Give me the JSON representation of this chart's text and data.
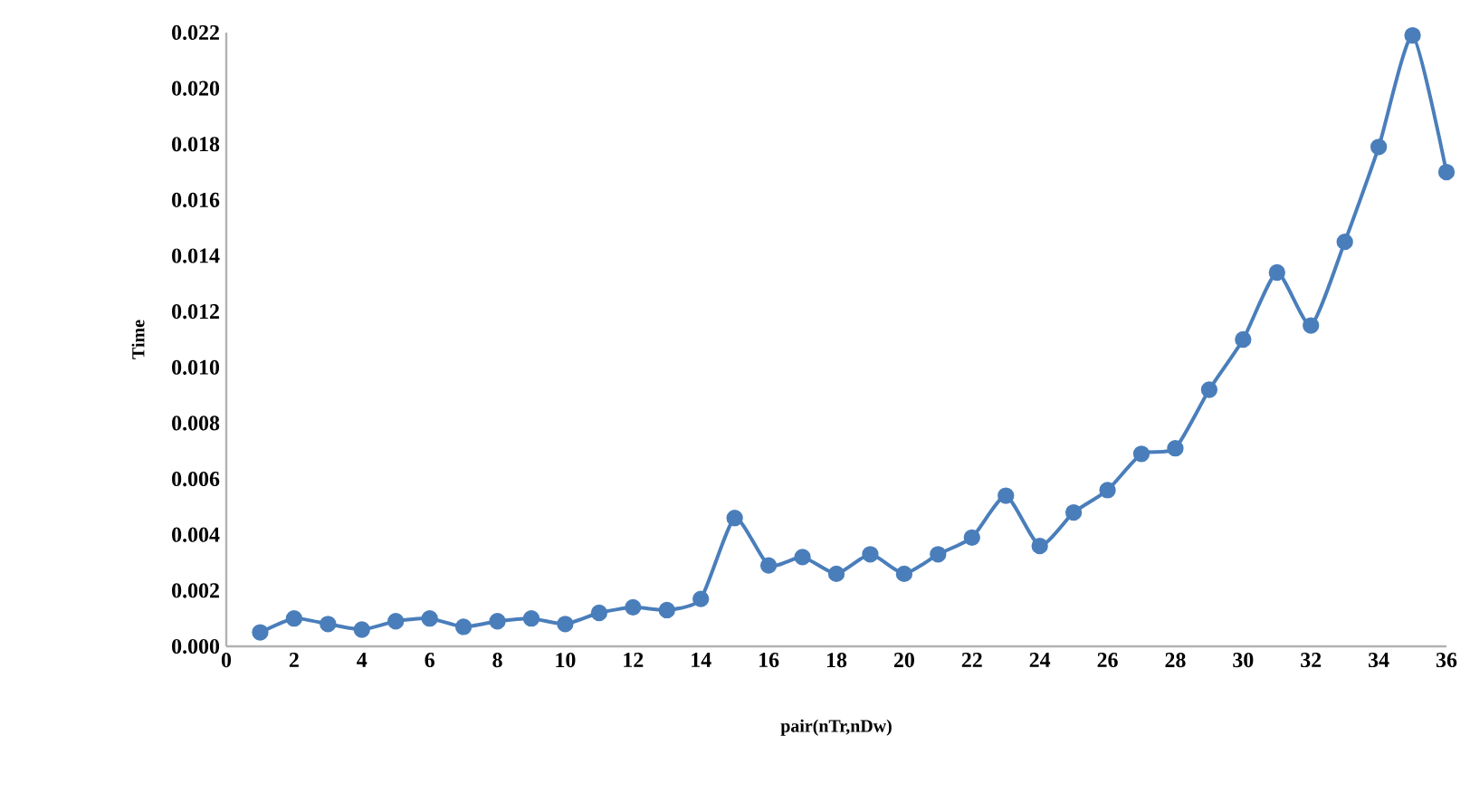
{
  "chart_data": {
    "type": "line",
    "xlabel": "pair(nTr,nDw)",
    "ylabel": "Time",
    "x": [
      1,
      2,
      3,
      4,
      5,
      6,
      7,
      8,
      9,
      10,
      11,
      12,
      13,
      14,
      15,
      16,
      17,
      18,
      19,
      20,
      21,
      22,
      23,
      24,
      25,
      26,
      27,
      28,
      29,
      30,
      31,
      32,
      33,
      34,
      35,
      36
    ],
    "series": [
      {
        "color": "#4a7ebb",
        "values": [
          0.0005,
          0.001,
          0.0008,
          0.0006,
          0.0009,
          0.001,
          0.0007,
          0.0009,
          0.001,
          0.0008,
          0.0012,
          0.0014,
          0.0013,
          0.0017,
          0.0046,
          0.0029,
          0.0032,
          0.0026,
          0.0033,
          0.0026,
          0.0033,
          0.0039,
          0.0054,
          0.0036,
          0.0048,
          0.0056,
          0.0069,
          0.0071,
          0.0092,
          0.011,
          0.0134,
          0.0115,
          0.0145,
          0.0179,
          0.0219,
          0.017
        ]
      }
    ],
    "xlim": [
      0,
      36
    ],
    "xticks": [
      0,
      2,
      4,
      6,
      8,
      10,
      12,
      14,
      16,
      18,
      20,
      22,
      24,
      26,
      28,
      30,
      32,
      34,
      36
    ],
    "ylim": [
      0,
      0.022
    ],
    "yticks": [
      {
        "value": 0,
        "label": "0.000"
      },
      {
        "value": 0.002,
        "label": "0.002"
      },
      {
        "value": 0.004,
        "label": "0.004"
      },
      {
        "value": 0.006,
        "label": "0.006"
      },
      {
        "value": 0.008,
        "label": "0.008"
      },
      {
        "value": 0.01,
        "label": "0.010"
      },
      {
        "value": 0.012,
        "label": "0.012"
      },
      {
        "value": 0.014,
        "label": "0.014"
      },
      {
        "value": 0.016,
        "label": "0.016"
      },
      {
        "value": 0.018,
        "label": "0.018"
      },
      {
        "value": 0.02,
        "label": "0.020"
      },
      {
        "value": 0.022,
        "label": "0.022"
      }
    ],
    "grid": false,
    "marker": "circle",
    "line_style": "solid"
  }
}
